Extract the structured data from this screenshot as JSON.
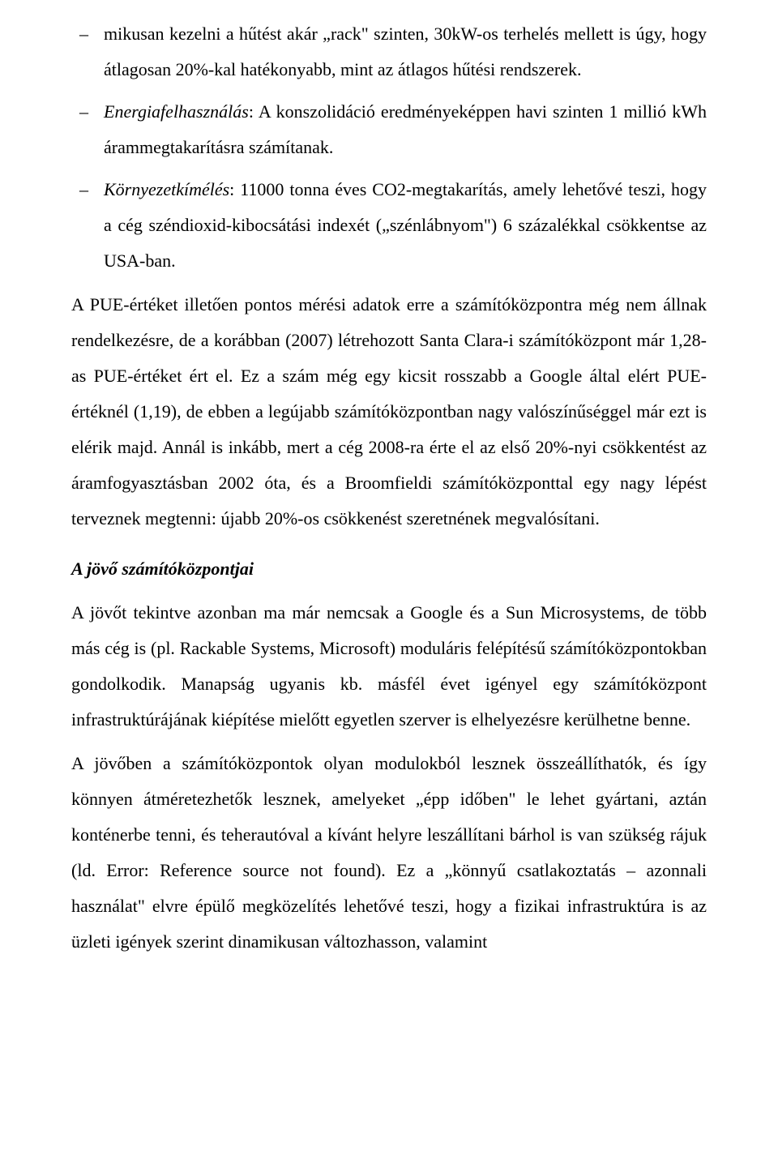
{
  "colors": {
    "background": "#ffffff",
    "text": "#000000"
  },
  "typography": {
    "body_font": "Times New Roman",
    "body_fontsize_pt": 16,
    "line_spacing": 2.0,
    "subhead_style": "bold italic"
  },
  "body": {
    "list": [
      {
        "prefix": "mikusan kezelni a hűtést akár „rack\" szinten, 30kW-os terhelés mellett is úgy, hogy átlagosan 20%-kal hatékonyabb, mint az átlagos hűtési rendszerek."
      },
      {
        "em": "Energiafelhasználás",
        "rest": ": A konszolidáció eredményeképpen havi szinten 1 millió kWh árammegtakarításra számítanak."
      },
      {
        "em": "Környezetkímélés",
        "rest": ": 11000 tonna éves CO2-megtakarítás, amely lehetővé teszi, hogy a cég széndioxid-kibocsátási indexét („szénlábnyom\") 6 százalékkal csökkentse az USA-ban."
      }
    ],
    "para_pue": "A PUE-értéket illetően pontos mérési adatok erre a számítóközpontra még nem állnak rendelkezésre, de a korábban (2007) létrehozott Santa Clara-i számítóközpont már 1,28-as PUE-értéket ért el. Ez a szám még egy kicsit rosszabb a Google által elért PUE-értéknél (1,19), de ebben a legújabb számítóközpontban nagy valószínűséggel már ezt is elérik majd. Annál is inkább, mert a cég 2008-ra  érte el az első 20%-nyi csökkentést az áramfogyasztásban 2002 óta, és a Broomfieldi számítóközponttal egy nagy lépést terveznek megtenni: újabb  20%-os csökkenést szeretnének megvalósítani.",
    "subheading": "A jövő számítóközpontjai",
    "para_future1": "A jövőt tekintve azonban ma már nemcsak a Google és a Sun Microsystems, de több más cég is (pl. Rackable Systems, Microsoft) moduláris felépítésű számítóközpontokban gondolkodik. Manapság ugyanis kb. másfél évet igényel egy számítóközpont infrastruktúrájának kiépítése mielőtt egyetlen szerver is elhelyezésre kerülhetne benne.",
    "para_future2": "A jövőben a számítóközpontok olyan modulokból lesznek összeállíthatók, és így könnyen átméretezhetők lesznek, amelyeket „épp időben\" le lehet gyártani, aztán konténerbe tenni, és teherautóval a kívánt helyre leszállítani bárhol is van szükség rájuk (ld. Error: Reference source not found). Ez a „könnyű csatlakoztatás – azonnali használat\" elvre épülő megközelítés lehetővé teszi, hogy a fizikai infrastruktúra is az üzleti igények szerint dinamikusan változhasson, valamint"
  }
}
